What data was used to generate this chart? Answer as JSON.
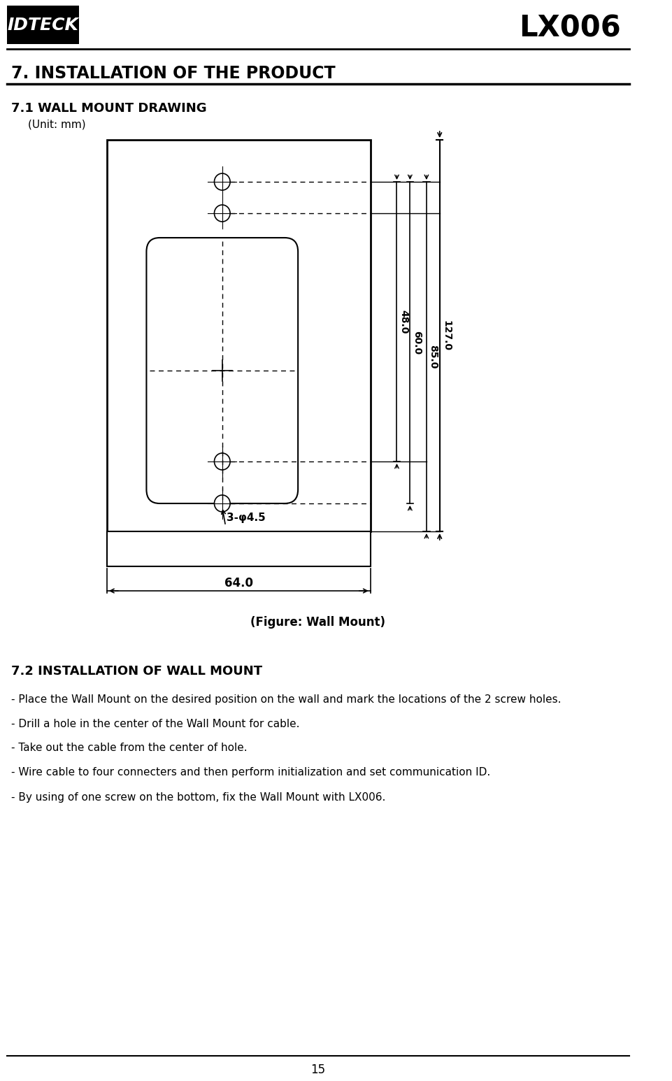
{
  "page_title": "LX006",
  "section_title": "7. INSTALLATION OF THE PRODUCT",
  "subsection_1": "7.1 WALL MOUNT DRAWING",
  "unit_label": "(Unit: mm)",
  "figure_caption": "(Figure: Wall Mount)",
  "subsection_2": "7.2 INSTALLATION OF WALL MOUNT",
  "instructions": [
    "- Place the Wall Mount on the desired position on the wall and mark the locations of the 2 screw holes.",
    "- Drill a hole in the center of the Wall Mount for cable.",
    "- Take out the cable from the center of hole.",
    "- Wire cable to four connecters and then perform initialization and set communication ID.",
    "- By using of one screw on the bottom, fix the Wall Mount with LX006."
  ],
  "page_number": "15",
  "bg_color": "#ffffff",
  "text_color": "#000000",
  "dim_48": "48.0",
  "dim_60": "60.0",
  "dim_85": "85.0",
  "dim_127": "127.0",
  "dim_64": "64.0",
  "hole_label": "3-φ4.5"
}
